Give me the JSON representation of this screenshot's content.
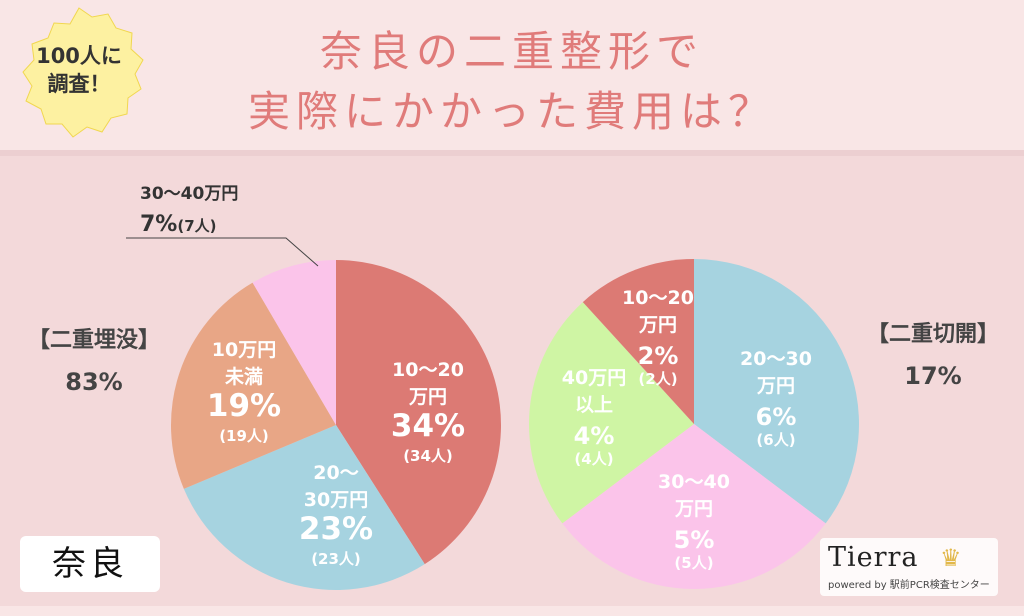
{
  "header": {
    "badge_line1": "100人に",
    "badge_line2": "調査！",
    "title_line1": "奈良の二重整形で",
    "title_line2": "実際にかかった費用は？"
  },
  "left_label": {
    "name": "【二重埋没】",
    "percent": "83%"
  },
  "right_label": {
    "name": "【二重切開】",
    "percent": "17%"
  },
  "region_label": "奈良",
  "logo": {
    "brand": "Tierra",
    "sub": "powered by 駅前PCR検査センター"
  },
  "colors": {
    "red": "#dc7a74",
    "blue": "#a6d3e0",
    "salmon": "#e8a686",
    "pink": "#fbc4ea",
    "green": "#cff5a4",
    "title": "#e07b7a"
  },
  "chart_data": [
    {
      "type": "pie",
      "title": "【二重埋没】 83%",
      "slices": [
        {
          "name": "10〜20万円",
          "value": 34,
          "count": 34,
          "color": "red",
          "lines": [
            "10〜20",
            "万円"
          ],
          "pct": "34%",
          "cnt": "(34人)"
        },
        {
          "name": "20〜30万円",
          "value": 23,
          "count": 23,
          "color": "blue",
          "lines": [
            "20〜",
            "30万円"
          ],
          "pct": "23%",
          "cnt": "(23人)"
        },
        {
          "name": "10万円未満",
          "value": 19,
          "count": 19,
          "color": "salmon",
          "lines": [
            "10万円",
            "未満"
          ],
          "pct": "19%",
          "cnt": "(19人)"
        },
        {
          "name": "30〜40万円",
          "value": 7,
          "count": 7,
          "color": "pink",
          "lines": [
            "30〜40万円"
          ],
          "pct": "7%",
          "cnt": "(7人)"
        }
      ]
    },
    {
      "type": "pie",
      "title": "【二重切開】 17%",
      "slices": [
        {
          "name": "20〜30万円",
          "value": 6,
          "count": 6,
          "color": "blue",
          "lines": [
            "20〜30",
            "万円"
          ],
          "pct": "6%",
          "cnt": "(6人)"
        },
        {
          "name": "30〜40万円",
          "value": 5,
          "count": 5,
          "color": "pink",
          "lines": [
            "30〜40",
            "万円"
          ],
          "pct": "5%",
          "cnt": "(5人)"
        },
        {
          "name": "40万円以上",
          "value": 4,
          "count": 4,
          "color": "green",
          "lines": [
            "40万円",
            "以上"
          ],
          "pct": "4%",
          "cnt": "(4人)"
        },
        {
          "name": "10〜20万円",
          "value": 2,
          "count": 2,
          "color": "red",
          "lines": [
            "10〜20",
            "万円"
          ],
          "pct": "2%",
          "cnt": "(2人)"
        }
      ]
    }
  ]
}
